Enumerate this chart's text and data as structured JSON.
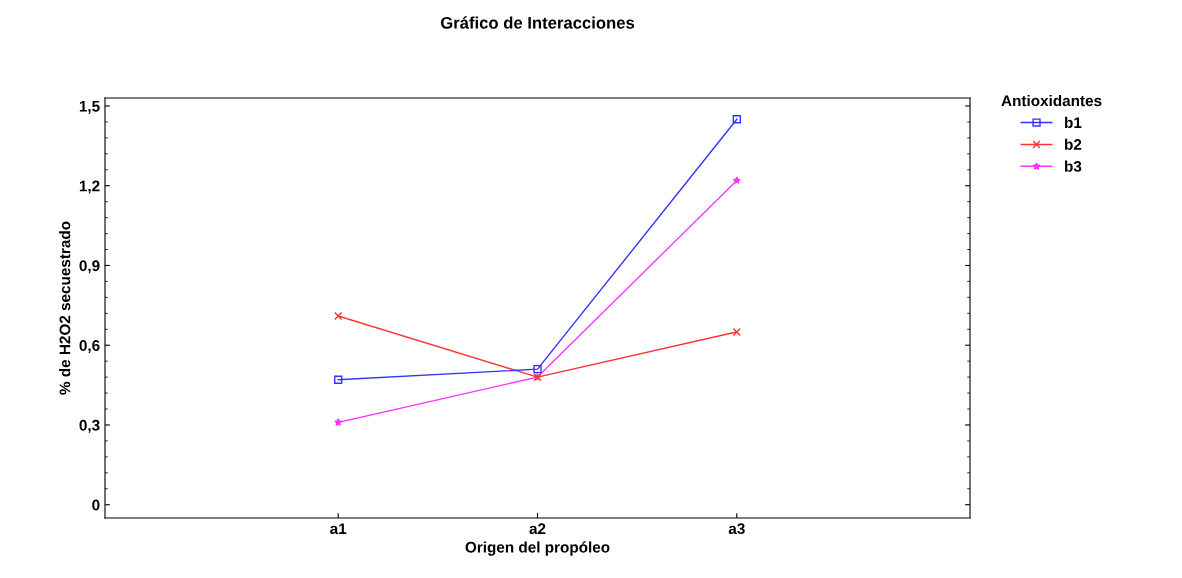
{
  "chart_data": {
    "type": "line",
    "title": "Gráfico de Interacciones",
    "xlabel": "Origen del propóleo",
    "ylabel": "% de H2O2 secuestrado",
    "legend_title": "Antioxidantes",
    "categories": [
      "a1",
      "a2",
      "a3"
    ],
    "series": [
      {
        "name": "b1",
        "color": "#3333ff",
        "marker": "square",
        "values": [
          0.47,
          0.51,
          1.45
        ]
      },
      {
        "name": "b2",
        "color": "#ff3333",
        "marker": "cross",
        "values": [
          0.71,
          0.48,
          0.65
        ]
      },
      {
        "name": "b3",
        "color": "#ff33ff",
        "marker": "star",
        "values": [
          0.31,
          0.48,
          1.22
        ]
      }
    ],
    "ylim": [
      -0.05,
      1.53
    ],
    "yticks": [
      {
        "value": 0,
        "label": "0"
      },
      {
        "value": 0.3,
        "label": "0,3"
      },
      {
        "value": 0.6,
        "label": "0,6"
      },
      {
        "value": 0.9,
        "label": "0,9"
      },
      {
        "value": 1.2,
        "label": "1,2"
      },
      {
        "value": 1.5,
        "label": "1,5"
      }
    ],
    "grid": false,
    "legend": "top right",
    "line_style": "solid"
  }
}
